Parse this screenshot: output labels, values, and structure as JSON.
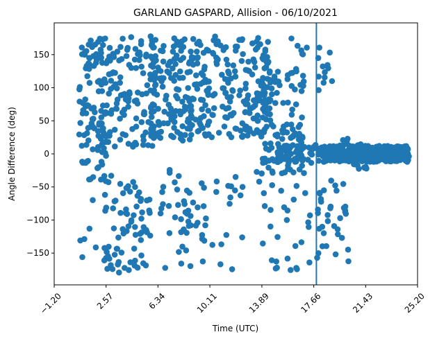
{
  "chart_data": {
    "type": "scatter",
    "title": "GARLAND GASPARD, Allision - 06/10/2021",
    "xlabel": "Time (UTC)",
    "ylabel": "Angle Difference (deg)",
    "xlim": [
      -1.2,
      25.2
    ],
    "ylim": [
      -198,
      198
    ],
    "xticks": [
      -1.2,
      2.57,
      6.34,
      10.11,
      13.89,
      17.66,
      21.43,
      25.2
    ],
    "xtick_labels": [
      "−1.20",
      "2.57",
      "6.34",
      "10.11",
      "13.89",
      "17.66",
      "21.43",
      "25.20"
    ],
    "yticks": [
      -150,
      -100,
      -50,
      0,
      50,
      100,
      150
    ],
    "ytick_labels": [
      "−150",
      "−100",
      "−50",
      "0",
      "50",
      "100",
      "150"
    ],
    "vline_x": 17.85,
    "series_color": "#1f77b4",
    "grid": false,
    "point_groups": [
      {
        "x_range": [
          0.6,
          3.0
        ],
        "y_range": [
          -40,
          175
        ],
        "count": 130
      },
      {
        "x_range": [
          0.6,
          2.2
        ],
        "y_range": [
          -165,
          -60
        ],
        "count": 6
      },
      {
        "x_range": [
          2.4,
          5.8
        ],
        "y_range": [
          -180,
          -40
        ],
        "count": 75
      },
      {
        "x_range": [
          2.6,
          6.2
        ],
        "y_range": [
          10,
          178
        ],
        "count": 110
      },
      {
        "x_range": [
          5.8,
          9.0
        ],
        "y_range": [
          20,
          180
        ],
        "count": 140
      },
      {
        "x_range": [
          6.5,
          9.8
        ],
        "y_range": [
          -178,
          -20
        ],
        "count": 45
      },
      {
        "x_range": [
          9.0,
          14.5
        ],
        "y_range": [
          25,
          178
        ],
        "count": 200
      },
      {
        "x_range": [
          9.5,
          12.5
        ],
        "y_range": [
          -178,
          -20
        ],
        "count": 20
      },
      {
        "x_range": [
          13.5,
          17.0
        ],
        "y_range": [
          -30,
          130
        ],
        "count": 120
      },
      {
        "x_range": [
          13.5,
          17.5
        ],
        "y_range": [
          -178,
          -40
        ],
        "count": 30
      },
      {
        "x_range": [
          15.0,
          18.0
        ],
        "y_range": [
          -15,
          15
        ],
        "count": 60
      },
      {
        "x_range": [
          16.0,
          17.6
        ],
        "y_range": [
          150,
          178
        ],
        "count": 6
      },
      {
        "x_range": [
          17.9,
          19.0
        ],
        "y_range": [
          85,
          178
        ],
        "count": 12
      },
      {
        "x_range": [
          17.9,
          20.2
        ],
        "y_range": [
          -175,
          -40
        ],
        "count": 35
      },
      {
        "x_range": [
          18.0,
          24.6
        ],
        "y_range": [
          -12,
          12
        ],
        "count": 320
      },
      {
        "x_range": [
          19.5,
          21.5
        ],
        "y_range": [
          -25,
          25
        ],
        "count": 40
      }
    ]
  }
}
